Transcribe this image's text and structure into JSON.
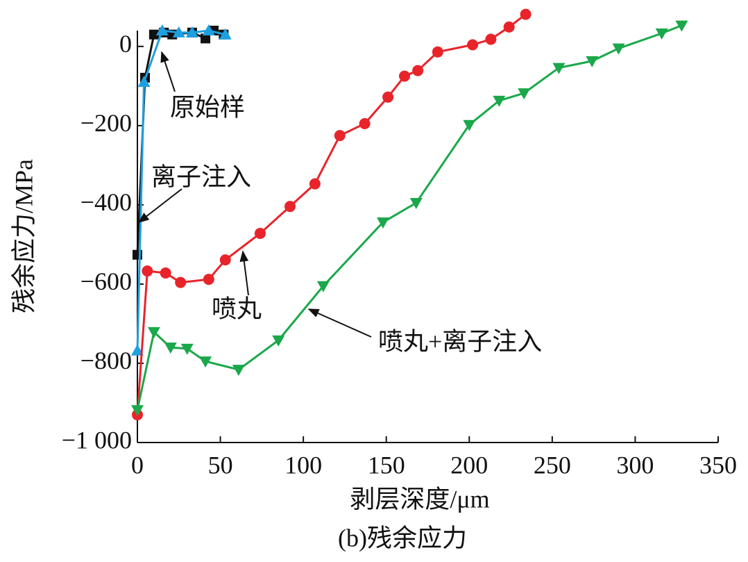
{
  "chart_data": {
    "type": "line",
    "xlabel": "剥层深度/μm",
    "ylabel": "残余应力/MPa",
    "caption": "(b)残余应力",
    "xlim": [
      0,
      350
    ],
    "ylim": [
      -1000,
      40
    ],
    "xticks": [
      0,
      50,
      100,
      150,
      200,
      250,
      300,
      350
    ],
    "yticks": [
      {
        "value": -1000,
        "label": "−1 000"
      },
      {
        "value": -800,
        "label": "−800"
      },
      {
        "value": -600,
        "label": "−600"
      },
      {
        "value": -400,
        "label": "−400"
      },
      {
        "value": -200,
        "label": "−200"
      },
      0
    ],
    "series": [
      {
        "name": "原始样",
        "color": "#111111",
        "marker": "square",
        "x": [
          0,
          4.6,
          10,
          16,
          21,
          33,
          41,
          46,
          52
        ],
        "values": [
          -526,
          -79,
          30,
          35,
          30,
          35,
          20,
          40,
          30
        ]
      },
      {
        "name": "离子注入",
        "color": "#1ea0e0",
        "marker": "triangle-up",
        "x": [
          0,
          4,
          15,
          25,
          33,
          43,
          53
        ],
        "values": [
          -768,
          -90,
          40,
          35,
          35,
          40,
          30
        ]
      },
      {
        "name": "喷丸",
        "color": "#e8242a",
        "marker": "circle",
        "x": [
          0,
          6,
          17,
          26,
          43,
          53,
          74,
          92,
          107,
          122,
          137,
          151,
          161,
          169,
          181,
          202,
          213,
          224,
          234
        ],
        "values": [
          -930,
          -567,
          -572,
          -596,
          -588,
          -539,
          -472,
          -404,
          -347,
          -225,
          -195,
          -128,
          -75,
          -61,
          -14,
          4,
          18,
          49,
          81
        ]
      },
      {
        "name": "喷丸+离子注入",
        "color": "#1aa84a",
        "marker": "triangle-down",
        "x": [
          0,
          10,
          20,
          30,
          41,
          61,
          85,
          112,
          148,
          168,
          200,
          218,
          233,
          254,
          274,
          290,
          316,
          328
        ],
        "values": [
          -918,
          -721,
          -760,
          -763,
          -795,
          -816,
          -742,
          -605,
          -444,
          -395,
          -198,
          -137,
          -118,
          -54,
          -37,
          -5,
          33,
          53
        ]
      }
    ]
  }
}
